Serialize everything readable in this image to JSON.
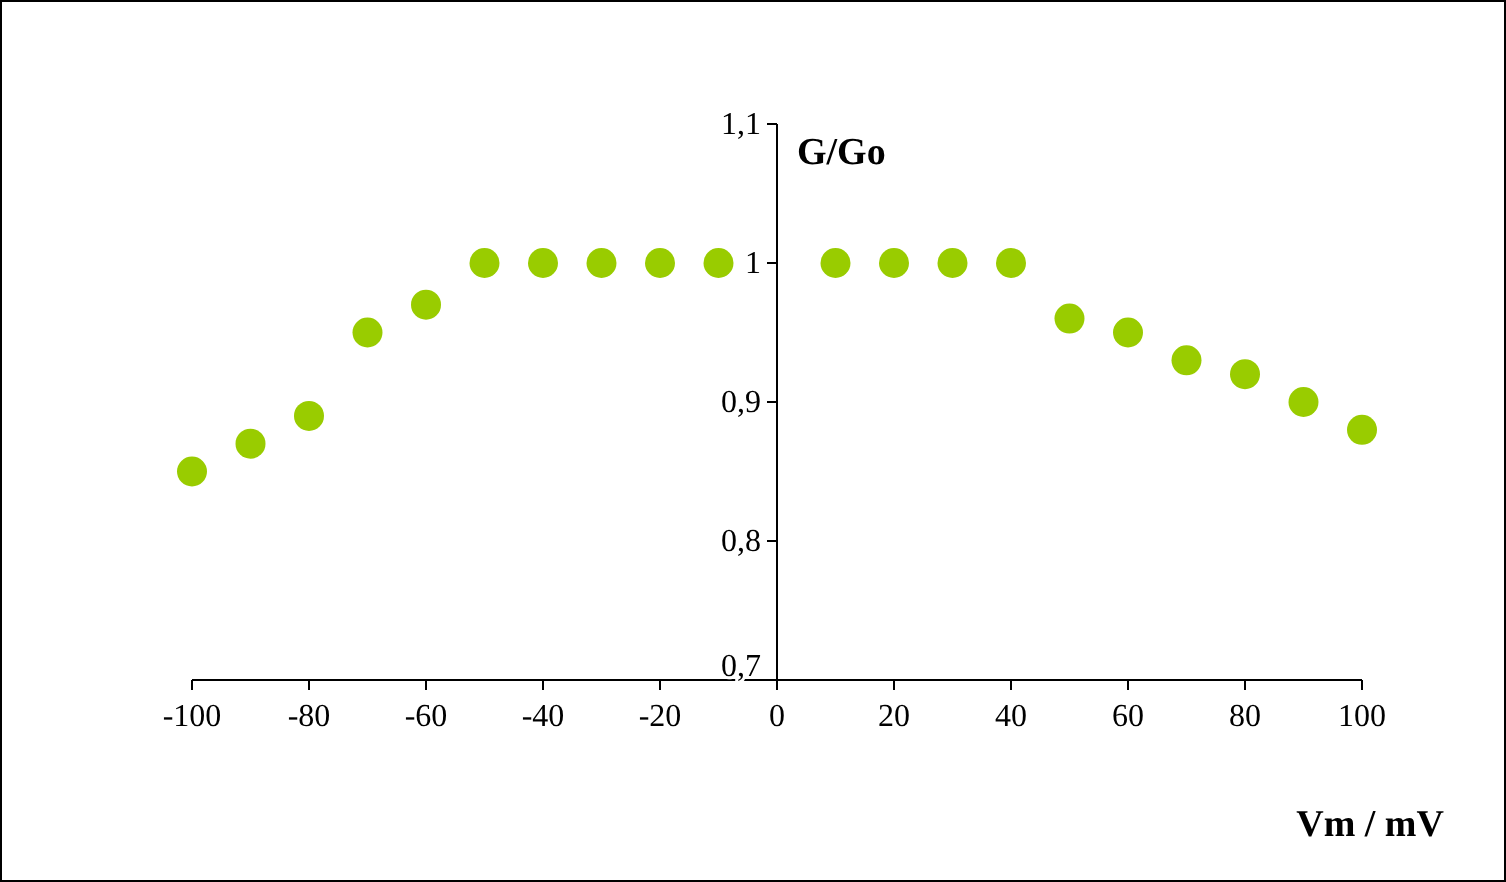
{
  "chart_data": {
    "type": "scatter",
    "xlabel": "Vm / mV",
    "ylabel": "G/Go",
    "x": [
      -100,
      -90,
      -80,
      -70,
      -60,
      -50,
      -40,
      -30,
      -20,
      -10,
      10,
      20,
      30,
      40,
      50,
      60,
      70,
      80,
      90,
      100
    ],
    "series": [
      {
        "color": "#99cc00",
        "values": [
          0.85,
          0.87,
          0.89,
          0.95,
          0.97,
          1,
          1,
          1,
          1,
          1,
          1,
          1,
          1,
          1,
          0.96,
          0.95,
          0.93,
          0.92,
          0.9,
          0.88
        ]
      }
    ],
    "xlim": [
      -100,
      100
    ],
    "ylim": [
      0.7,
      1.1
    ],
    "xticks": [
      -100,
      -80,
      -60,
      -40,
      -20,
      0,
      20,
      40,
      60,
      80,
      100
    ],
    "yticks": [
      {
        "value": 0.7,
        "label": "0,7"
      },
      {
        "value": 0.8,
        "label": "0,8"
      },
      {
        "value": 0.9,
        "label": "0,9"
      },
      {
        "value": 1,
        "label": "1"
      },
      {
        "value": 1.1,
        "label": "1,1"
      }
    ],
    "grid": false,
    "marker": "circle"
  }
}
